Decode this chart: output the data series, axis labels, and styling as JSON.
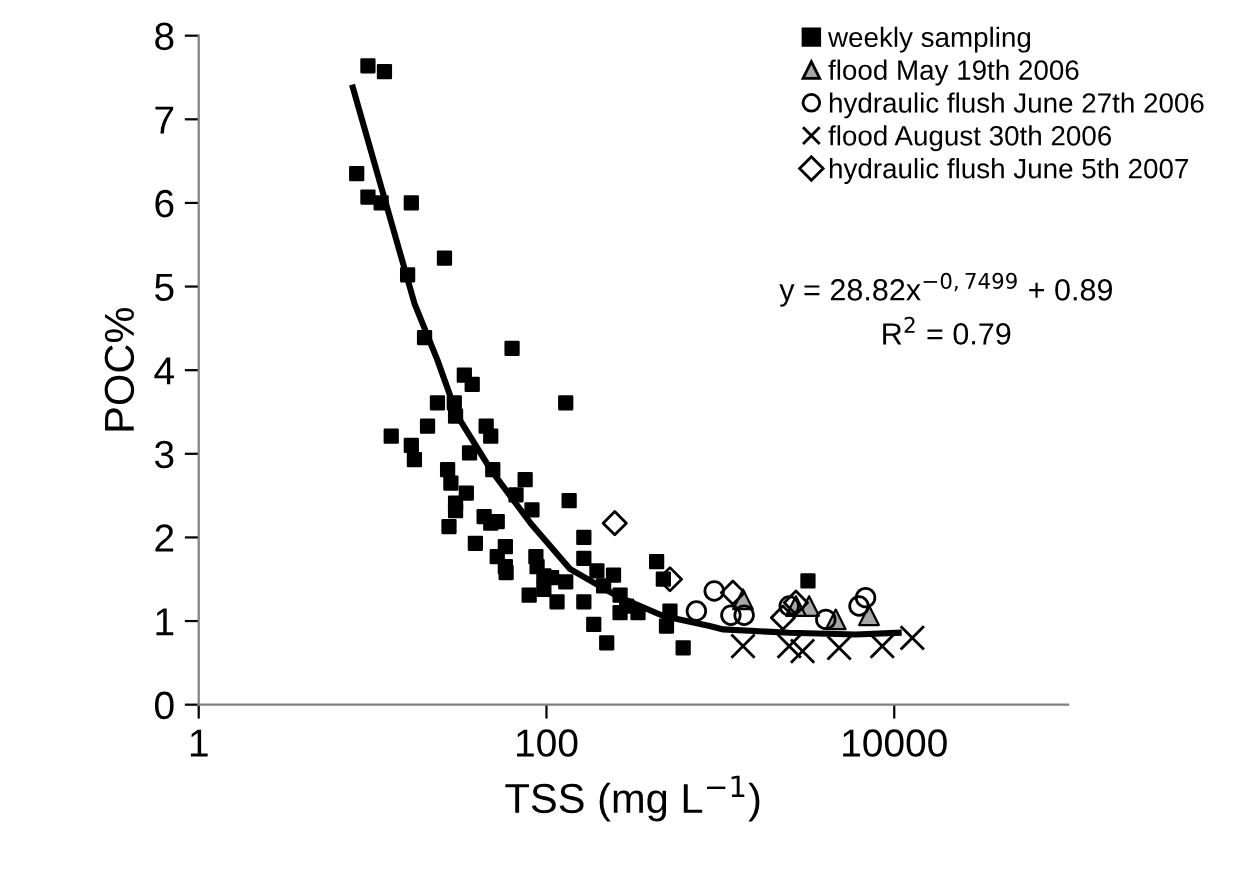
{
  "chart_data": {
    "type": "scatter",
    "xlabel": "TSS (mg L$^{−1}$)",
    "ylabel": "POC%",
    "log": "x",
    "xlim": [
      1,
      100000
    ],
    "xticks": [
      1,
      100,
      10000
    ],
    "ylim": [
      0,
      8
    ],
    "yticks": [
      0,
      1,
      2,
      3,
      4,
      5,
      6,
      7,
      8
    ],
    "grid": false,
    "legend": "top right",
    "annotations": [
      "y = 28.82x$^{−0,7499}$ + 0.89",
      "R$^{2}$ = 0.79"
    ],
    "series": [
      {
        "name": "weekly sampling",
        "marker": "square",
        "color": "#000000",
        "x": [
          9.4,
          11.7,
          8.1,
          9.4,
          11.2,
          16.7,
          25.9,
          15.9,
          19.9,
          63.4,
          33.7,
          37.4,
          23.6,
          29.5,
          129,
          20.7,
          30.0,
          12.8,
          16.7,
          17.4,
          45.0,
          47.8,
          36.1,
          27.0,
          28.2,
          49.1,
          34.6,
          75.4,
          66.8,
          30.0,
          30.0,
          82.5,
          135,
          27.5,
          43.8,
          47.8,
          52.1,
          39.0,
          58.0,
          52.1,
          58.0,
          58.6,
          86.9,
          88.3,
          96.6,
          107,
          79.5,
          96.6,
          115,
          129,
          164,
          164,
          195,
          243,
          164,
          213,
          265,
          265,
          289,
          336,
          187,
          222,
          430,
          470,
          513,
          490,
          611,
          3190
        ],
        "values": [
          7.64,
          7.57,
          6.35,
          6.07,
          6.0,
          6.0,
          5.34,
          5.14,
          4.39,
          4.26,
          3.94,
          3.83,
          3.61,
          3.61,
          3.61,
          3.33,
          3.45,
          3.21,
          3.1,
          2.93,
          3.33,
          3.21,
          3.01,
          2.81,
          2.65,
          2.81,
          2.53,
          2.69,
          2.51,
          2.41,
          2.32,
          2.33,
          2.44,
          2.13,
          2.25,
          2.17,
          2.19,
          1.93,
          1.89,
          1.77,
          1.65,
          1.58,
          1.77,
          1.65,
          1.54,
          1.52,
          1.31,
          1.38,
          1.23,
          1.47,
          2.0,
          1.75,
          1.6,
          1.55,
          1.23,
          1.42,
          1.31,
          1.1,
          1.18,
          1.1,
          0.96,
          0.74,
          1.71,
          1.5,
          1.12,
          0.94,
          0.68,
          1.48
        ]
      },
      {
        "name": "flood May 19th 2006",
        "marker": "triangle",
        "color": "#a6a6a6",
        "x": [
          1350,
          3240,
          4610,
          7160,
          2720
        ],
        "values": [
          1.26,
          1.18,
          1.02,
          1.07,
          1.18
        ]
      },
      {
        "name": "hydraulic flush June 27th 2006",
        "marker": "circle",
        "color": "#000000",
        "x": [
          728,
          922,
          1150,
          1370,
          4040,
          6270,
          6840,
          2490
        ],
        "values": [
          1.12,
          1.36,
          1.07,
          1.07,
          1.02,
          1.18,
          1.28,
          1.18
        ]
      },
      {
        "name": "flood August 30th 2006",
        "marker": "cross",
        "color": "#000000",
        "x": [
          1350,
          2490,
          2970,
          4820,
          8530,
          12700
        ],
        "values": [
          0.7,
          0.7,
          0.64,
          0.68,
          0.7,
          0.8
        ]
      },
      {
        "name": "hydraulic flush June 5th 2007",
        "marker": "diamond",
        "color": "#000000",
        "x": [
          247,
          513,
          1180,
          2290,
          2720
        ],
        "values": [
          2.17,
          1.5,
          1.34,
          1.04,
          1.22
        ]
      },
      {
        "type": "line",
        "marker": "none",
        "line_style": "solid",
        "color": "#000000",
        "x": [
          7.7,
          17.4,
          23.6,
          30.8,
          47.8,
          81.0,
          137,
          254,
          470,
          868,
          1040,
          2490,
          6000,
          10600
        ],
        "values": [
          7.38,
          4.8,
          4.12,
          3.45,
          2.81,
          2.17,
          1.62,
          1.3,
          1.06,
          0.94,
          0.9,
          0.86,
          0.84,
          0.86
        ]
      }
    ]
  }
}
